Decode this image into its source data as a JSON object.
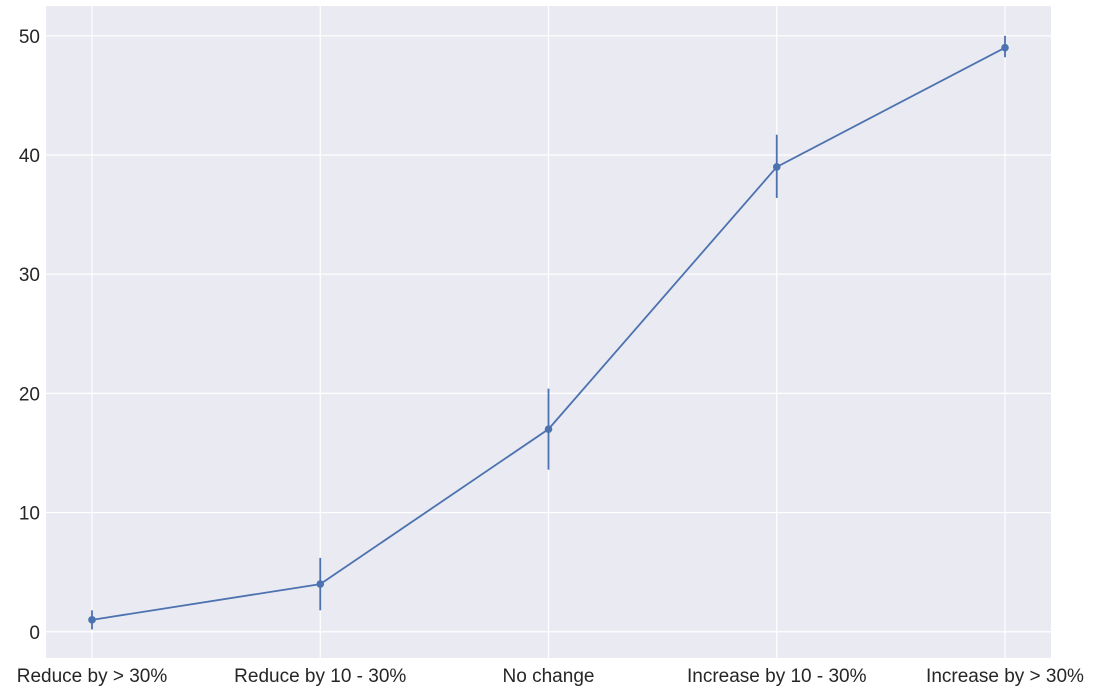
{
  "chart_data": {
    "type": "line",
    "title": "",
    "xlabel": "",
    "ylabel": "",
    "categories": [
      "Reduce by > 30%",
      "Reduce by 10 - 30%",
      "No change",
      "Increase by 10 - 30%",
      "Increase by > 30%"
    ],
    "series": [
      {
        "values": [
          1,
          4,
          17,
          39,
          49
        ],
        "err_low": [
          0.2,
          1.8,
          13.6,
          36.4,
          48.2
        ],
        "err_high": [
          1.8,
          6.2,
          20.4,
          41.7,
          50
        ]
      }
    ],
    "ylim": [
      -2.2,
      52.5
    ],
    "yticks": [
      0,
      10,
      20,
      30,
      40,
      50
    ],
    "grid": true,
    "legend": "none",
    "colors": {
      "background": "#eaeaf2",
      "grid": "#ffffff",
      "series": "#4c72b0",
      "text": "#262626"
    }
  }
}
